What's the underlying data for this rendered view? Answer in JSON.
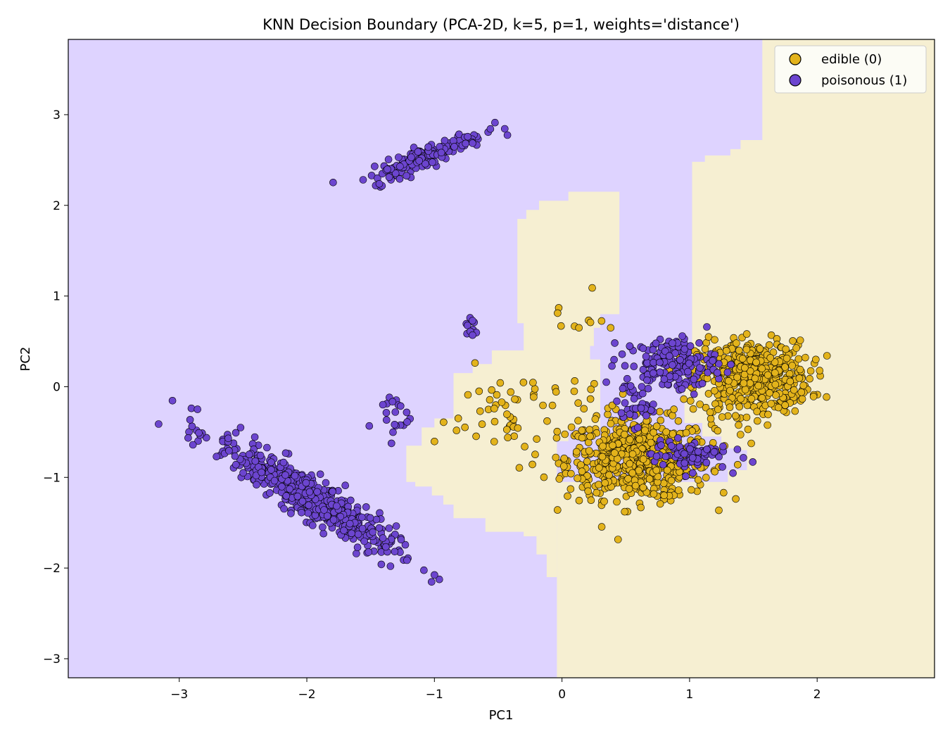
{
  "chart_data": {
    "type": "scatter",
    "title": "KNN Decision Boundary (PCA-2D, k=5, p=1, weights='distance')",
    "xlabel": "PC1",
    "ylabel": "PC2",
    "xlim": [
      -3.87,
      2.92
    ],
    "ylim": [
      -3.21,
      3.83
    ],
    "xticks": [
      -3,
      -2,
      -1,
      0,
      1,
      2
    ],
    "yticks": [
      -3,
      -2,
      -1,
      0,
      1,
      2,
      3
    ],
    "grid": false,
    "legend_position": "top-right",
    "colors": {
      "edible_point": "#e3b31b",
      "poisonous_point": "#6c45cf",
      "edible_region": "#f6efd2",
      "poisonous_region": "#ded3ff"
    },
    "decision_regions": [
      {
        "class": "edible (0)",
        "polygon": [
          [
            -0.04,
            -3.21
          ],
          [
            2.92,
            -3.21
          ],
          [
            2.92,
            3.83
          ],
          [
            1.57,
            3.83
          ],
          [
            1.57,
            2.72
          ],
          [
            1.4,
            2.72
          ],
          [
            1.4,
            2.62
          ],
          [
            1.32,
            2.62
          ],
          [
            1.32,
            2.55
          ],
          [
            1.12,
            2.55
          ],
          [
            1.12,
            2.48
          ],
          [
            1.02,
            2.48
          ],
          [
            1.02,
            0.2
          ],
          [
            0.96,
            0.2
          ],
          [
            0.96,
            -0.4
          ],
          [
            1.1,
            -0.4
          ],
          [
            1.1,
            -0.55
          ],
          [
            1.25,
            -0.55
          ],
          [
            1.25,
            -0.68
          ],
          [
            1.35,
            -0.68
          ],
          [
            1.35,
            -0.7
          ],
          [
            1.45,
            -0.7
          ],
          [
            1.45,
            -0.92
          ],
          [
            1.3,
            -0.92
          ],
          [
            1.3,
            -1.05
          ],
          [
            -0.04,
            -1.05
          ]
        ]
      },
      {
        "class": "edible (0)",
        "polygon": [
          [
            0.05,
            2.15
          ],
          [
            0.45,
            2.15
          ],
          [
            0.45,
            0.8
          ],
          [
            0.3,
            0.8
          ],
          [
            0.3,
            0.65
          ],
          [
            0.25,
            0.65
          ],
          [
            0.25,
            0.45
          ],
          [
            0.22,
            0.45
          ],
          [
            0.22,
            0.3
          ],
          [
            0.3,
            0.3
          ],
          [
            0.3,
            -0.45
          ],
          [
            0.05,
            -0.45
          ],
          [
            0.05,
            -0.6
          ],
          [
            -0.04,
            -0.6
          ],
          [
            -0.04,
            -2.1
          ],
          [
            -0.12,
            -2.1
          ],
          [
            -0.12,
            -1.85
          ],
          [
            -0.2,
            -1.85
          ],
          [
            -0.2,
            -1.65
          ],
          [
            -0.3,
            -1.65
          ],
          [
            -0.3,
            -1.6
          ],
          [
            -0.6,
            -1.6
          ],
          [
            -0.6,
            -1.45
          ],
          [
            -0.85,
            -1.45
          ],
          [
            -0.85,
            -1.3
          ],
          [
            -0.93,
            -1.3
          ],
          [
            -0.93,
            -1.2
          ],
          [
            -1.02,
            -1.2
          ],
          [
            -1.02,
            -1.1
          ],
          [
            -1.15,
            -1.1
          ],
          [
            -1.15,
            -1.05
          ],
          [
            -1.22,
            -1.05
          ],
          [
            -1.22,
            -0.65
          ],
          [
            -1.1,
            -0.65
          ],
          [
            -1.1,
            -0.45
          ],
          [
            -1.0,
            -0.45
          ],
          [
            -1.0,
            -0.35
          ],
          [
            -0.85,
            -0.35
          ],
          [
            -0.85,
            0.15
          ],
          [
            -0.7,
            0.15
          ],
          [
            -0.7,
            0.25
          ],
          [
            -0.55,
            0.25
          ],
          [
            -0.55,
            0.4
          ],
          [
            -0.3,
            0.4
          ],
          [
            -0.3,
            0.7
          ],
          [
            -0.35,
            0.7
          ],
          [
            -0.35,
            1.85
          ],
          [
            -0.28,
            1.85
          ],
          [
            -0.28,
            1.95
          ],
          [
            -0.18,
            1.95
          ],
          [
            -0.18,
            2.05
          ],
          [
            0.05,
            2.05
          ]
        ]
      }
    ],
    "series": [
      {
        "name": "edible (0)",
        "color": "#e3b31b",
        "clusters": [
          {
            "cx": 0.6,
            "cy": -0.8,
            "sx": 0.28,
            "sy": 0.22,
            "n": 650
          },
          {
            "cx": 1.5,
            "cy": 0.1,
            "sx": 0.22,
            "sy": 0.2,
            "n": 500
          },
          {
            "cx": -0.3,
            "cy": -0.3,
            "sx": 0.35,
            "sy": 0.25,
            "n": 65
          },
          {
            "cx": 0.1,
            "cy": 0.7,
            "sx": 0.12,
            "sy": 0.15,
            "n": 10
          }
        ]
      },
      {
        "name": "poisonous (1)",
        "color": "#6c45cf",
        "clusters": [
          {
            "cx": -2.0,
            "cy": -1.2,
            "sx": 0.35,
            "sy": 0.32,
            "rho": -0.92,
            "n": 520
          },
          {
            "cx": -1.05,
            "cy": 2.55,
            "sx": 0.22,
            "sy": 0.14,
            "rho": 0.9,
            "n": 180
          },
          {
            "cx": 0.85,
            "cy": 0.25,
            "sx": 0.18,
            "sy": 0.15,
            "n": 160
          },
          {
            "cx": 0.55,
            "cy": -0.2,
            "sx": 0.08,
            "sy": 0.12,
            "n": 35
          },
          {
            "cx": 1.0,
            "cy": -0.75,
            "sx": 0.15,
            "sy": 0.08,
            "n": 80
          },
          {
            "cx": -1.35,
            "cy": -0.3,
            "sx": 0.08,
            "sy": 0.15,
            "n": 20
          },
          {
            "cx": -0.7,
            "cy": 0.65,
            "sx": 0.05,
            "sy": 0.07,
            "n": 10
          }
        ]
      }
    ]
  }
}
